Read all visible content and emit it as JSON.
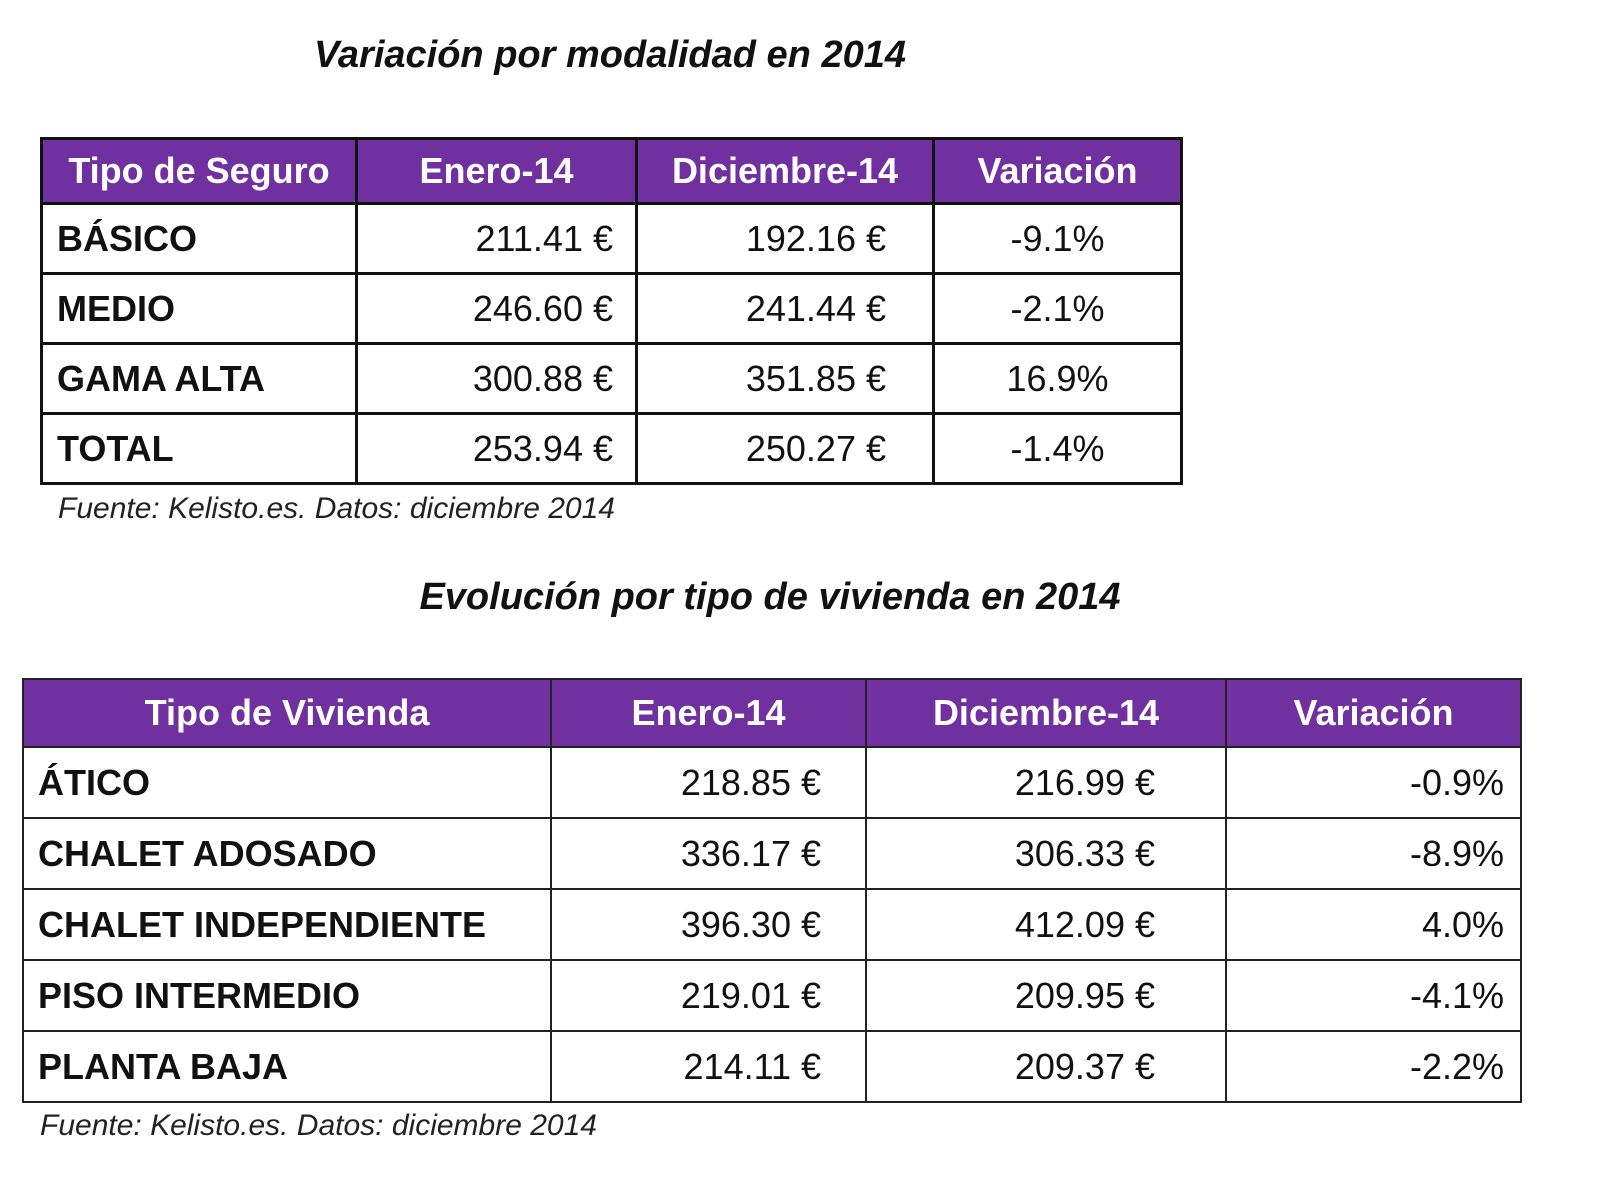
{
  "tables": [
    {
      "title": "Variación por modalidad en 2014",
      "headers": [
        "Tipo de Seguro",
        "Enero-14",
        "Diciembre-14",
        "Variación"
      ],
      "rows": [
        [
          "BÁSICO",
          "211.41 €",
          "192.16 €",
          "-9.1%"
        ],
        [
          "MEDIO",
          "246.60 €",
          "241.44 €",
          "-2.1%"
        ],
        [
          "GAMA ALTA",
          "300.88 €",
          "351.85 €",
          "16.9%"
        ],
        [
          "TOTAL",
          "253.94 €",
          "250.27 €",
          "-1.4%"
        ]
      ],
      "source": "Fuente: Kelisto.es. Datos: diciembre 2014"
    },
    {
      "title": "Evolución por tipo de vivienda en 2014",
      "headers": [
        "Tipo de Vivienda",
        "Enero-14",
        "Diciembre-14",
        "Variación"
      ],
      "rows": [
        [
          "ÁTICO",
          "218.85 €",
          "216.99 €",
          "-0.9%"
        ],
        [
          "CHALET ADOSADO",
          "336.17 €",
          "306.33 €",
          "-8.9%"
        ],
        [
          "CHALET INDEPENDIENTE",
          "396.30 €",
          "412.09 €",
          "4.0%"
        ],
        [
          "PISO INTERMEDIO",
          "219.01 €",
          "209.95 €",
          "-4.1%"
        ],
        [
          "PLANTA BAJA",
          "214.11 €",
          "209.37 €",
          "-2.2%"
        ]
      ],
      "source": "Fuente: Kelisto.es. Datos: diciembre 2014"
    }
  ]
}
